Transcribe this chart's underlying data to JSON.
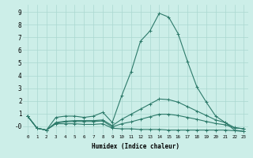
{
  "xlabel": "Humidex (Indice chaleur)",
  "background_color": "#cceee8",
  "line_color": "#2d7a6a",
  "grid_color": "#aad8d0",
  "xlim": [
    -0.5,
    23.5
  ],
  "ylim": [
    -0.6,
    9.6
  ],
  "xticks": [
    0,
    1,
    2,
    3,
    4,
    5,
    6,
    7,
    8,
    9,
    10,
    11,
    12,
    13,
    14,
    15,
    16,
    17,
    18,
    19,
    20,
    21,
    22,
    23
  ],
  "yticks": [
    0,
    1,
    2,
    3,
    4,
    5,
    6,
    7,
    8,
    9
  ],
  "ytick_labels": [
    "-0",
    "1",
    "2",
    "3",
    "4",
    "5",
    "6",
    "7",
    "8",
    "9"
  ],
  "series": [
    [
      0.8,
      -0.15,
      -0.3,
      0.7,
      0.8,
      0.8,
      0.7,
      0.8,
      1.1,
      0.3,
      2.4,
      4.3,
      6.7,
      7.5,
      8.9,
      8.6,
      7.3,
      5.1,
      3.1,
      1.9,
      0.8,
      0.3,
      -0.3,
      -0.4
    ],
    [
      0.8,
      -0.15,
      -0.3,
      0.3,
      0.4,
      0.45,
      0.45,
      0.45,
      0.5,
      0.05,
      0.55,
      0.95,
      1.35,
      1.75,
      2.15,
      2.1,
      1.9,
      1.55,
      1.2,
      0.85,
      0.5,
      0.3,
      -0.1,
      -0.2
    ],
    [
      0.8,
      -0.15,
      -0.3,
      0.2,
      0.2,
      0.2,
      0.15,
      0.15,
      0.2,
      -0.15,
      -0.2,
      -0.2,
      -0.25,
      -0.25,
      -0.25,
      -0.3,
      -0.3,
      -0.3,
      -0.3,
      -0.3,
      -0.3,
      -0.3,
      -0.35,
      -0.4
    ],
    [
      0.8,
      -0.15,
      -0.3,
      0.25,
      0.35,
      0.38,
      0.38,
      0.38,
      0.42,
      -0.05,
      0.2,
      0.35,
      0.55,
      0.75,
      0.95,
      0.95,
      0.85,
      0.7,
      0.55,
      0.38,
      0.22,
      0.12,
      -0.12,
      -0.2
    ]
  ]
}
